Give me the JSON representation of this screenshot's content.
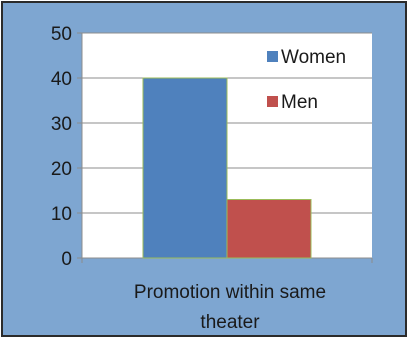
{
  "chart_data": {
    "type": "bar",
    "categories": [
      "Promotion within same theater"
    ],
    "category_label_lines": [
      "Promotion within same",
      "theater"
    ],
    "series": [
      {
        "name": "Women",
        "values": [
          40
        ],
        "color": "#4f81bd"
      },
      {
        "name": "Men",
        "values": [
          13
        ],
        "color": "#c0504d"
      }
    ],
    "ylim": [
      0,
      50
    ],
    "yticks": [
      "0",
      "10",
      "20",
      "30",
      "40",
      "50"
    ],
    "grid": true,
    "legend_position": "top-right",
    "colors": {
      "background": "#7ea6d1",
      "plot_area": "#ffffff",
      "gridline": "#8c8c8c",
      "bar_outline": "#9bbb59"
    }
  }
}
